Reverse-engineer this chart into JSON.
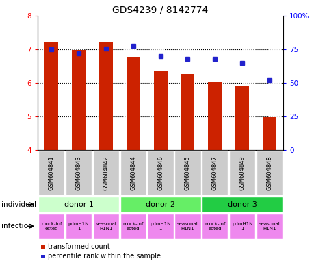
{
  "title": "GDS4239 / 8142774",
  "samples": [
    "GSM604841",
    "GSM604843",
    "GSM604842",
    "GSM604844",
    "GSM604846",
    "GSM604845",
    "GSM604847",
    "GSM604849",
    "GSM604848"
  ],
  "bar_values": [
    7.22,
    6.97,
    7.22,
    6.77,
    6.37,
    6.27,
    6.02,
    5.9,
    4.97
  ],
  "percentile_values": [
    75.0,
    72.0,
    75.5,
    77.5,
    70.0,
    68.0,
    68.0,
    65.0,
    52.0
  ],
  "bar_color": "#cc2200",
  "dot_color": "#2222cc",
  "ylim_left": [
    4,
    8
  ],
  "ylim_right": [
    0,
    100
  ],
  "yticks_left": [
    4,
    5,
    6,
    7,
    8
  ],
  "yticks_right": [
    0,
    25,
    50,
    75,
    100
  ],
  "ytick_labels_right": [
    "0",
    "25",
    "50",
    "75",
    "100%"
  ],
  "donors": [
    {
      "label": "donor 1",
      "start": 0,
      "end": 3,
      "color": "#ccffcc"
    },
    {
      "label": "donor 2",
      "start": 3,
      "end": 6,
      "color": "#66ee66"
    },
    {
      "label": "donor 3",
      "start": 6,
      "end": 9,
      "color": "#22cc44"
    }
  ],
  "infections": [
    "mock-inf\nected",
    "pdmH1N\n1",
    "seasonal\nH1N1",
    "mock-inf\nected",
    "pdmH1N\n1",
    "seasonal\nH1N1",
    "mock-inf\nected",
    "pdmH1N\n1",
    "seasonal\nH1N1"
  ],
  "infection_color": "#ee88ee",
  "sample_bg_color": "#cccccc",
  "individual_label": "individual",
  "infection_label": "infection",
  "legend_bar_label": "transformed count",
  "legend_dot_label": "percentile rank within the sample",
  "bar_width": 0.5,
  "title_fontsize": 10,
  "tick_fontsize": 7.5
}
